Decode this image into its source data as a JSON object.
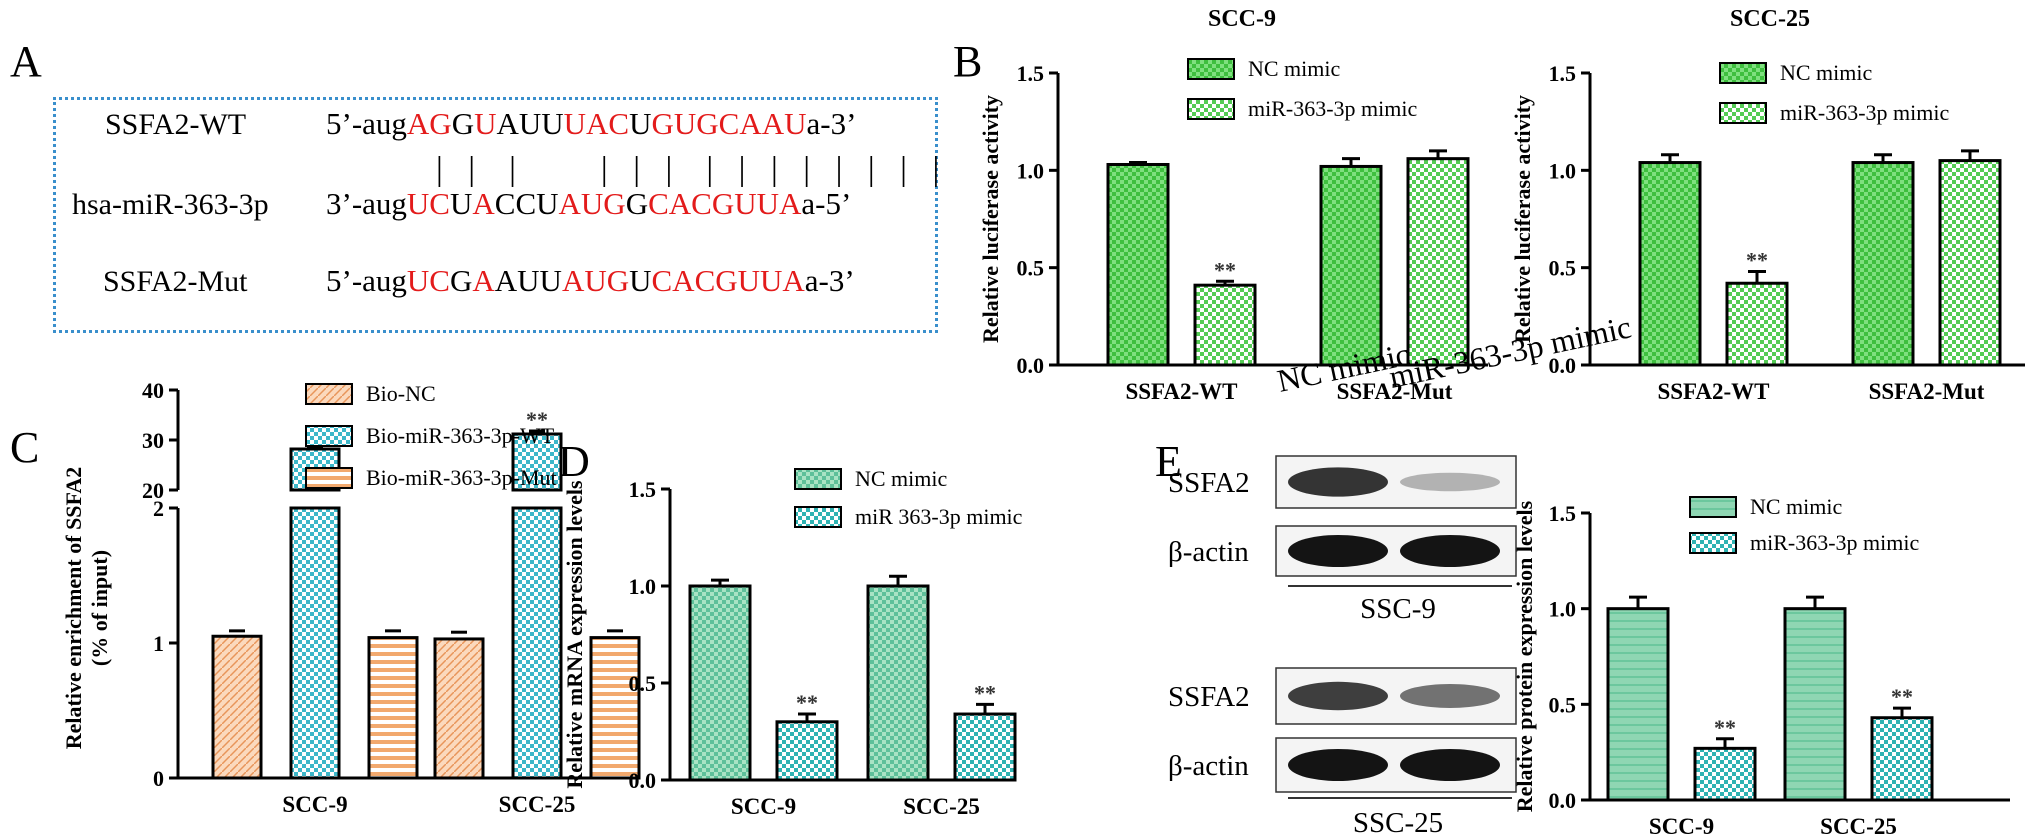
{
  "panel_letters": {
    "A": "A",
    "B": "B",
    "C": "C",
    "D": "D",
    "E": "E"
  },
  "panel_a": {
    "rows": [
      {
        "name": "SSFA2-WT",
        "segments": [
          [
            "5’-aug",
            0
          ],
          [
            "AG",
            1
          ],
          [
            "G",
            0
          ],
          [
            "U",
            1
          ],
          [
            "AUU",
            0
          ],
          [
            "UAC",
            1
          ],
          [
            "U",
            0
          ],
          [
            "GUGCAAU",
            1
          ],
          [
            "a-3’",
            0
          ]
        ]
      },
      {
        "name": "hsa-miR-363-3p",
        "segments": [
          [
            "3’-aug",
            0
          ],
          [
            "UC",
            1
          ],
          [
            "U",
            0
          ],
          [
            "A",
            1
          ],
          [
            "CCU",
            0
          ],
          [
            "AUG",
            1
          ],
          [
            "G",
            0
          ],
          [
            "CACGUUA",
            1
          ],
          [
            "a-5’",
            0
          ]
        ]
      },
      {
        "name": "SSFA2-Mut",
        "segments": [
          [
            "5’-aug",
            0
          ],
          [
            "UC",
            1
          ],
          [
            "G",
            0
          ],
          [
            "A",
            1
          ],
          [
            "AUU",
            0
          ],
          [
            "AUG",
            1
          ],
          [
            "U",
            0
          ],
          [
            "CACGUUA",
            1
          ],
          [
            "a-3’",
            0
          ]
        ]
      }
    ],
    "pairing": "|   |    |          |   |   |    |   |   |   |   |   |   |   |"
  },
  "chart_data": [
    {
      "id": "B1",
      "type": "bar",
      "title": "SCC-9",
      "ylabel": "Relative luciferase activity",
      "categories": [
        "SSFA2-WT",
        "SSFA2-Mut"
      ],
      "ylim": [
        0,
        1.5
      ],
      "ticks": [
        "0.0",
        "0.5",
        "1.0",
        "1.5"
      ],
      "series": [
        {
          "name": "NC mimic",
          "values": [
            1.03,
            1.02
          ],
          "errors": [
            0.01,
            0.04
          ],
          "color": "#5fd45f",
          "pattern": "p-green"
        },
        {
          "name": "miR-363-3p mimic",
          "values": [
            0.41,
            1.06
          ],
          "errors": [
            0.02,
            0.04
          ],
          "color": "#5fd45f",
          "pattern": "p-check-green"
        }
      ],
      "annotations": [
        {
          "series": 1,
          "category": 0,
          "text": "**"
        }
      ],
      "legend": "top-right"
    },
    {
      "id": "B2",
      "type": "bar",
      "title": "SCC-25",
      "ylabel": "Relative luciferase activity",
      "categories": [
        "SSFA2-WT",
        "SSFA2-Mut"
      ],
      "ylim": [
        0,
        1.5
      ],
      "ticks": [
        "0.0",
        "0.5",
        "1.0",
        "1.5"
      ],
      "series": [
        {
          "name": "NC mimic",
          "values": [
            1.04,
            1.04
          ],
          "errors": [
            0.04,
            0.04
          ],
          "color": "#5fd45f",
          "pattern": "p-green"
        },
        {
          "name": "miR-363-3p mimic",
          "values": [
            0.42,
            1.05
          ],
          "errors": [
            0.06,
            0.05
          ],
          "color": "#5fd45f",
          "pattern": "p-check-green"
        }
      ],
      "annotations": [
        {
          "series": 1,
          "category": 0,
          "text": "**"
        }
      ],
      "legend": "top-right"
    },
    {
      "id": "C",
      "type": "bar",
      "title": "",
      "ylabel": "Relative enrichment of SSFA2",
      "ylabel2": "(% of input)",
      "categories": [
        "SCC-9",
        "SCC-25"
      ],
      "broken_axis": true,
      "lower_ylim": [
        0,
        2
      ],
      "lower_ticks": [
        "0",
        "1",
        "2"
      ],
      "upper_ylim": [
        20,
        40
      ],
      "upper_ticks": [
        "20",
        "30",
        "40"
      ],
      "series": [
        {
          "name": "Bio-NC",
          "values": [
            1.05,
            1.03
          ],
          "errors": [
            0.04,
            0.05
          ],
          "color": "#f5b98a",
          "pattern": "p-orange"
        },
        {
          "name": "Bio-miR-363-3p-WT",
          "values": [
            28.2,
            31.2
          ],
          "errors": [
            0.5,
            0.6
          ],
          "color": "#5cc7d4",
          "pattern": "p-check-cyan"
        },
        {
          "name": "Bio-miR-363-3p-Mut",
          "values": [
            1.04,
            1.04
          ],
          "errors": [
            0.05,
            0.05
          ],
          "color": "#f5b98a",
          "pattern": "p-hstripe"
        }
      ],
      "annotations": [
        {
          "series": 1,
          "category": 0,
          "text": "**"
        },
        {
          "series": 1,
          "category": 1,
          "text": "**"
        }
      ],
      "legend": "top-right"
    },
    {
      "id": "D",
      "type": "bar",
      "title": "",
      "ylabel": "Relative mRNA expression levels",
      "categories": [
        "SCC-9",
        "SCC-25"
      ],
      "ylim": [
        0,
        1.5
      ],
      "ticks": [
        "0.0",
        "0.5",
        "1.0",
        "1.5"
      ],
      "series": [
        {
          "name": "NC mimic",
          "values": [
            1.0,
            1.0
          ],
          "errors": [
            0.03,
            0.05
          ],
          "color": "#5ec09a",
          "pattern": "p-teal"
        },
        {
          "name": "miR 363-3p mimic",
          "values": [
            0.3,
            0.34
          ],
          "errors": [
            0.04,
            0.05
          ],
          "color": "#33b8b8",
          "pattern": "p-check-teal"
        }
      ],
      "annotations": [
        {
          "series": 1,
          "category": 0,
          "text": "**"
        },
        {
          "series": 1,
          "category": 1,
          "text": "**"
        }
      ],
      "legend": "top-right"
    },
    {
      "id": "E",
      "type": "bar",
      "title": "",
      "ylabel": "Relative protein expression levels",
      "categories": [
        "SCC-9",
        "SCC-25"
      ],
      "ylim": [
        0,
        1.5
      ],
      "ticks": [
        "0.0",
        "0.5",
        "1.0",
        "1.5"
      ],
      "series": [
        {
          "name": "NC mimic",
          "values": [
            1.0,
            1.0
          ],
          "errors": [
            0.06,
            0.06
          ],
          "color": "#5ec09a",
          "pattern": "p-hteal"
        },
        {
          "name": "miR-363-3p mimic",
          "values": [
            0.27,
            0.43
          ],
          "errors": [
            0.05,
            0.05
          ],
          "color": "#33b8b8",
          "pattern": "p-check-teal"
        }
      ],
      "annotations": [
        {
          "series": 1,
          "category": 0,
          "text": "**"
        },
        {
          "series": 1,
          "category": 1,
          "text": "**"
        }
      ],
      "legend": "top-right"
    }
  ],
  "western_blot": {
    "lane_labels": [
      "NC mimic",
      "miR-363-3p mimic"
    ],
    "rows": [
      {
        "label": "SSFA2",
        "intensity": [
          0.85,
          0.25
        ]
      },
      {
        "label": "β-actin",
        "intensity": [
          1.0,
          1.0
        ]
      },
      {
        "label": "SSFA2",
        "intensity": [
          0.8,
          0.55
        ]
      },
      {
        "label": "β-actin",
        "intensity": [
          1.0,
          1.0
        ]
      }
    ],
    "group_labels": [
      "SSC-9",
      "SSC-25"
    ]
  }
}
